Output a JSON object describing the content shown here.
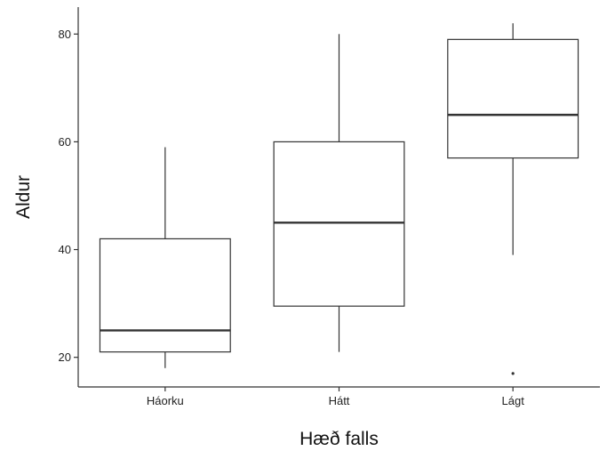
{
  "chart_data": {
    "type": "boxplot",
    "title": "",
    "xlabel": "Hæð falls",
    "ylabel": "Aldur",
    "ylim": [
      14.5,
      85
    ],
    "yticks": [
      20,
      40,
      60,
      80
    ],
    "grid": false,
    "legend": "none",
    "categories": [
      "Háorku",
      "Hátt",
      "Lágt"
    ],
    "boxes": [
      {
        "category": "Háorku",
        "whisker_low": 18,
        "q1": 21,
        "median": 25,
        "q3": 42,
        "whisker_high": 59,
        "outliers": []
      },
      {
        "category": "Hátt",
        "whisker_low": 21,
        "q1": 29.5,
        "median": 45,
        "q3": 60,
        "whisker_high": 80,
        "outliers": []
      },
      {
        "category": "Lágt",
        "whisker_low": 39,
        "q1": 57,
        "median": 65,
        "q3": 79,
        "whisker_high": 82,
        "outliers": [
          17
        ]
      }
    ],
    "colors": {
      "box_fill": "#ffffff",
      "stroke": "#333333",
      "median": "#333333"
    }
  }
}
